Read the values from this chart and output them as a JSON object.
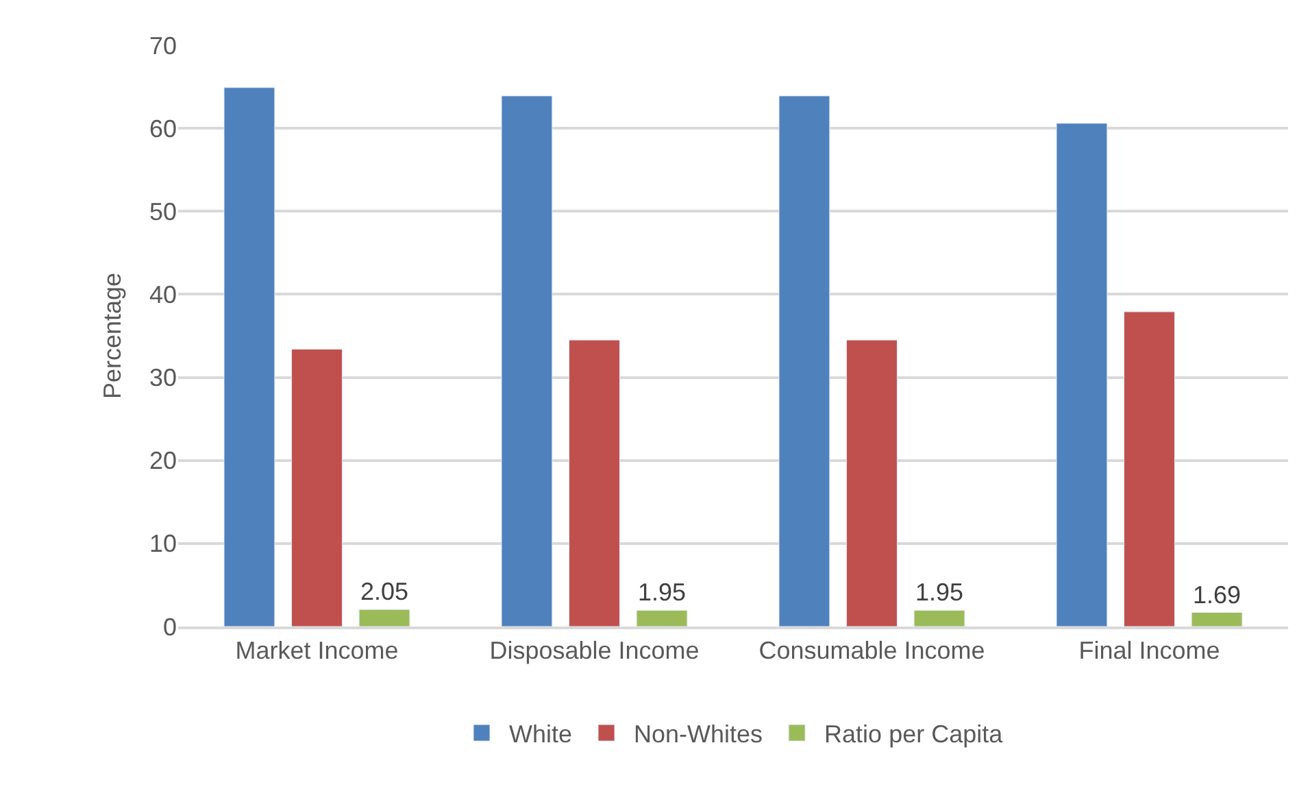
{
  "chart_data": {
    "type": "bar",
    "ylabel": "Percentage",
    "categories": [
      "Market Income",
      "Disposable Income",
      "Consumable Income",
      "Final Income"
    ],
    "series": [
      {
        "name": "White",
        "color": "#4f81bd",
        "values": [
          64.9,
          63.9,
          63.9,
          60.6
        ]
      },
      {
        "name": "Non-Whites",
        "color": "#c0504d",
        "values": [
          33.4,
          34.5,
          34.5,
          37.9
        ]
      },
      {
        "name": "Ratio per Capita",
        "color": "#9bbb59",
        "values": [
          2.05,
          1.95,
          1.95,
          1.69
        ],
        "value_labels": [
          "2.05",
          "1.95",
          "1.95",
          "1.69"
        ]
      }
    ],
    "ylim": [
      0,
      70
    ],
    "yticks": [
      0,
      10,
      20,
      30,
      40,
      50,
      60,
      70
    ],
    "grid": "y",
    "legend": "bottom"
  }
}
